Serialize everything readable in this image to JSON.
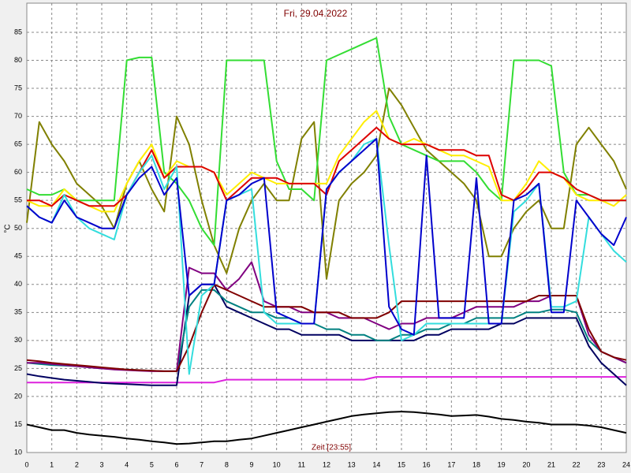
{
  "chart_data": {
    "type": "line",
    "title": "Fri, 29.04.2022",
    "y_label": "°C",
    "x_label": "Zeit [23:55]",
    "xlim": [
      0,
      24
    ],
    "xticks": [
      0,
      1,
      2,
      3,
      4,
      5,
      6,
      7,
      8,
      9,
      10,
      11,
      12,
      13,
      14,
      15,
      16,
      17,
      18,
      19,
      20,
      21,
      22,
      23,
      24
    ],
    "ylim": [
      10,
      90.2
    ],
    "yticks": [
      10,
      15,
      20,
      25,
      30,
      35,
      40,
      45,
      50,
      55,
      60,
      65,
      70,
      75,
      80,
      85
    ],
    "grid": true,
    "x": [
      0,
      0.5,
      1,
      1.5,
      2,
      2.5,
      3,
      3.5,
      4,
      4.5,
      5,
      5.5,
      6,
      6.5,
      7,
      7.5,
      8,
      8.5,
      9,
      9.5,
      10,
      10.5,
      11,
      11.5,
      12,
      12.5,
      13,
      13.5,
      14,
      14.5,
      15,
      15.5,
      16,
      16.5,
      17,
      17.5,
      18,
      18.5,
      19,
      19.5,
      20,
      20.5,
      21,
      21.5,
      22,
      22.5,
      23,
      23.5,
      24
    ],
    "series": [
      {
        "color": "#000000",
        "values": [
          15,
          14.5,
          14,
          14,
          13.5,
          13.2,
          13,
          12.8,
          12.5,
          12.3,
          12,
          11.8,
          11.5,
          11.6,
          11.8,
          12,
          12,
          12.3,
          12.5,
          13,
          13.5,
          14,
          14.5,
          15,
          15.5,
          16,
          16.5,
          16.8,
          17,
          17.2,
          17.3,
          17.2,
          17,
          16.8,
          16.5,
          16.6,
          16.7,
          16.4,
          16,
          15.8,
          15.5,
          15.3,
          15,
          15,
          15,
          14.8,
          14.5,
          14,
          13.5
        ]
      },
      {
        "color": "#dd22dd",
        "values": [
          22.5,
          22.5,
          22.5,
          22.5,
          22.5,
          22.5,
          22.5,
          22.5,
          22.5,
          22.5,
          22.5,
          22.5,
          22.5,
          22.5,
          22.5,
          22.5,
          23,
          23,
          23,
          23,
          23,
          23,
          23,
          23,
          23,
          23,
          23,
          23,
          23.5,
          23.5,
          23.5,
          23.5,
          23.5,
          23.5,
          23.5,
          23.5,
          23.5,
          23.5,
          23.5,
          23.5,
          23.5,
          23.5,
          23.5,
          23.5,
          23.5,
          23.5,
          23.5,
          23.5,
          23.5
        ]
      },
      {
        "color": "#000060",
        "values": [
          24,
          23.6,
          23.3,
          23,
          22.8,
          22.6,
          22.4,
          22.3,
          22.2,
          22.1,
          22,
          22,
          22,
          38,
          40,
          40,
          36,
          35,
          34,
          33,
          32,
          32,
          31,
          31,
          31,
          31,
          30,
          30,
          30,
          30,
          30,
          30,
          31,
          31,
          32,
          32,
          32,
          32,
          33,
          33,
          34,
          34,
          34,
          34,
          34,
          29,
          26,
          24,
          22
        ]
      },
      {
        "color": "#008080",
        "values": [
          26,
          25.8,
          25.6,
          25.5,
          25.4,
          25.2,
          25,
          24.9,
          24.8,
          24.7,
          24.6,
          24.5,
          24.5,
          36,
          39,
          39,
          37,
          36,
          35,
          35,
          34,
          34,
          33,
          33,
          32,
          32,
          31,
          31,
          30,
          30,
          31,
          31,
          32,
          32,
          33,
          33,
          34,
          34,
          34,
          34,
          35,
          35,
          35.5,
          35.5,
          35,
          30,
          28,
          27,
          26
        ]
      },
      {
        "color": "#800080",
        "values": [
          26,
          26,
          25.8,
          25.6,
          25.4,
          25.2,
          25,
          24.8,
          24.7,
          24.6,
          24.5,
          24.5,
          24.5,
          43,
          42,
          42,
          39,
          41,
          44,
          37,
          36,
          36,
          35,
          35,
          35,
          34,
          34,
          34,
          33,
          32,
          33,
          33,
          34,
          34,
          34,
          35,
          36,
          36,
          36,
          36,
          37,
          37,
          38,
          38,
          38,
          31,
          28,
          27,
          26
        ]
      },
      {
        "color": "#800000",
        "values": [
          26.5,
          26.3,
          26,
          25.8,
          25.6,
          25.4,
          25.2,
          25,
          24.8,
          24.7,
          24.6,
          24.5,
          24.5,
          29,
          35,
          40,
          39,
          38,
          37,
          36,
          36,
          36,
          36,
          35,
          35,
          35,
          34,
          34,
          34,
          35,
          37,
          37,
          37,
          37,
          37,
          37,
          37,
          37,
          37,
          37,
          37,
          38,
          38,
          38,
          38,
          32,
          28,
          27,
          26.5
        ]
      },
      {
        "color": "#808000",
        "values": [
          51,
          69,
          65,
          62,
          58,
          56,
          54,
          50,
          58,
          62,
          57,
          53,
          70,
          65,
          55,
          47,
          42,
          50,
          55,
          58,
          55,
          55,
          66,
          69,
          41,
          55,
          58,
          60,
          63,
          75,
          72,
          68,
          64,
          62,
          60,
          58,
          55,
          45,
          45,
          50,
          53,
          55,
          50,
          50,
          65,
          68,
          65,
          62,
          57
        ]
      },
      {
        "color": "#33dd33",
        "values": [
          57,
          56,
          56,
          57,
          55,
          55,
          55,
          55,
          80,
          80.5,
          80.5,
          60,
          58,
          55,
          50,
          47,
          80,
          80,
          80,
          80,
          62,
          57,
          57,
          55,
          80,
          81,
          82,
          83,
          84,
          70,
          65,
          64,
          63,
          62,
          62,
          62,
          60,
          57,
          55,
          80,
          80,
          80,
          79,
          60,
          56,
          56,
          55,
          55,
          55
        ]
      },
      {
        "color": "#ffee00",
        "values": [
          55,
          54,
          54,
          57,
          55,
          54,
          53,
          53,
          58,
          62,
          65,
          59,
          62,
          61,
          61,
          60,
          56,
          58,
          60,
          59,
          58,
          58,
          58,
          58,
          58,
          63,
          66,
          69,
          71,
          66,
          65,
          66,
          65,
          64,
          63,
          63,
          62,
          61,
          55,
          55,
          58,
          62,
          60,
          59,
          56,
          55,
          55,
          54,
          56
        ]
      },
      {
        "color": "#dd0000",
        "values": [
          55,
          55,
          54,
          56,
          55,
          54,
          54,
          54,
          56,
          60,
          64,
          59,
          61,
          61,
          61,
          60,
          55,
          57,
          59,
          59,
          59,
          58,
          58,
          58,
          56,
          62,
          64,
          66,
          68,
          66,
          65,
          65,
          65,
          64,
          64,
          64,
          63,
          63,
          56,
          55,
          57,
          60,
          60,
          59,
          57,
          56,
          55,
          55,
          55
        ]
      },
      {
        "color": "#33dddd",
        "values": [
          54,
          52,
          51,
          56,
          52,
          50,
          49,
          48,
          56,
          60,
          63,
          57,
          61,
          24,
          38,
          40,
          55,
          56,
          57,
          35,
          33,
          33,
          33,
          33,
          57,
          60,
          62,
          65,
          66,
          47,
          30,
          31,
          33,
          33,
          33,
          33,
          33,
          33,
          33,
          53,
          55,
          58,
          36,
          36,
          37,
          52,
          49,
          46,
          44
        ]
      },
      {
        "color": "#0000cc",
        "values": [
          54,
          52,
          51,
          55,
          52,
          51,
          50,
          50,
          56,
          59,
          61,
          56,
          59,
          38,
          40,
          40,
          55,
          56,
          58,
          59,
          35,
          34,
          33,
          33,
          57,
          60,
          62,
          64,
          66,
          36,
          32,
          31,
          63,
          34,
          34,
          34,
          59,
          33,
          33,
          55,
          56,
          58,
          35,
          35,
          55,
          52,
          49,
          47,
          52
        ]
      }
    ]
  }
}
